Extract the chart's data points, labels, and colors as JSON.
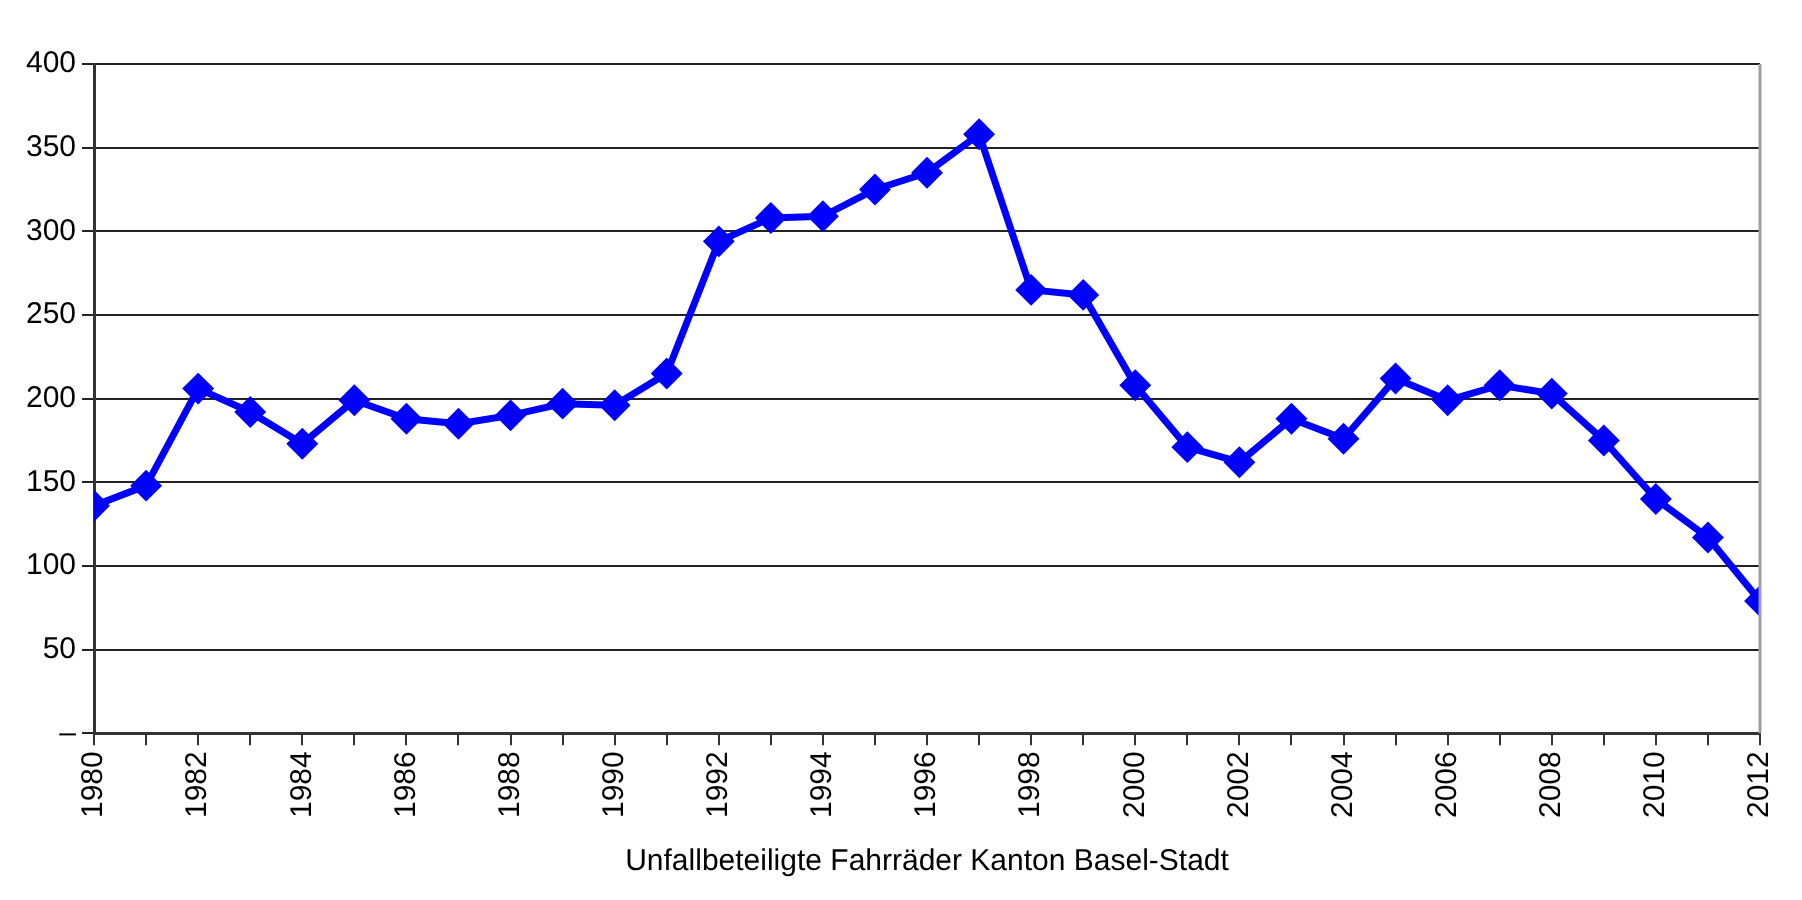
{
  "chart_data": {
    "type": "line",
    "xlabel": "Unfallbeteiligte Fahrräder Kanton Basel-Stadt",
    "x": [
      1980,
      1981,
      1982,
      1983,
      1984,
      1985,
      1986,
      1987,
      1988,
      1989,
      1990,
      1991,
      1992,
      1993,
      1994,
      1995,
      1996,
      1997,
      1998,
      1999,
      2000,
      2001,
      2002,
      2003,
      2004,
      2005,
      2006,
      2007,
      2008,
      2009,
      2010,
      2011,
      2012
    ],
    "series": [
      {
        "color": "#0000ff",
        "values": [
          136,
          148,
          206,
          192,
          173,
          199,
          188,
          185,
          190,
          197,
          196,
          215,
          294,
          308,
          309,
          325,
          335,
          358,
          265,
          262,
          208,
          171,
          162,
          188,
          176,
          212,
          199,
          208,
          203,
          175,
          140,
          117,
          79
        ]
      }
    ],
    "xlim": [
      1980,
      2012
    ],
    "xticks": [
      1980,
      {
        "value": 1981,
        "label": null
      },
      1982,
      {
        "value": 1983,
        "label": null
      },
      1984,
      {
        "value": 1985,
        "label": null
      },
      1986,
      {
        "value": 1987,
        "label": null
      },
      1988,
      {
        "value": 1989,
        "label": null
      },
      1990,
      {
        "value": 1991,
        "label": null
      },
      1992,
      {
        "value": 1993,
        "label": null
      },
      1994,
      {
        "value": 1995,
        "label": null
      },
      1996,
      {
        "value": 1997,
        "label": null
      },
      1998,
      {
        "value": 1999,
        "label": null
      },
      2000,
      {
        "value": 2001,
        "label": null
      },
      2002,
      {
        "value": 2003,
        "label": null
      },
      2004,
      {
        "value": 2005,
        "label": null
      },
      2006,
      {
        "value": 2007,
        "label": null
      },
      2008,
      {
        "value": 2009,
        "label": null
      },
      2010,
      {
        "value": 2011,
        "label": null
      },
      2012
    ],
    "ylim": [
      0,
      400
    ],
    "yticks": [
      {
        "value": 0,
        "label": "–"
      },
      50,
      100,
      150,
      200,
      250,
      300,
      350,
      400
    ],
    "grid": "y",
    "legend": false,
    "marker": "diamond",
    "line_style": "solid"
  }
}
